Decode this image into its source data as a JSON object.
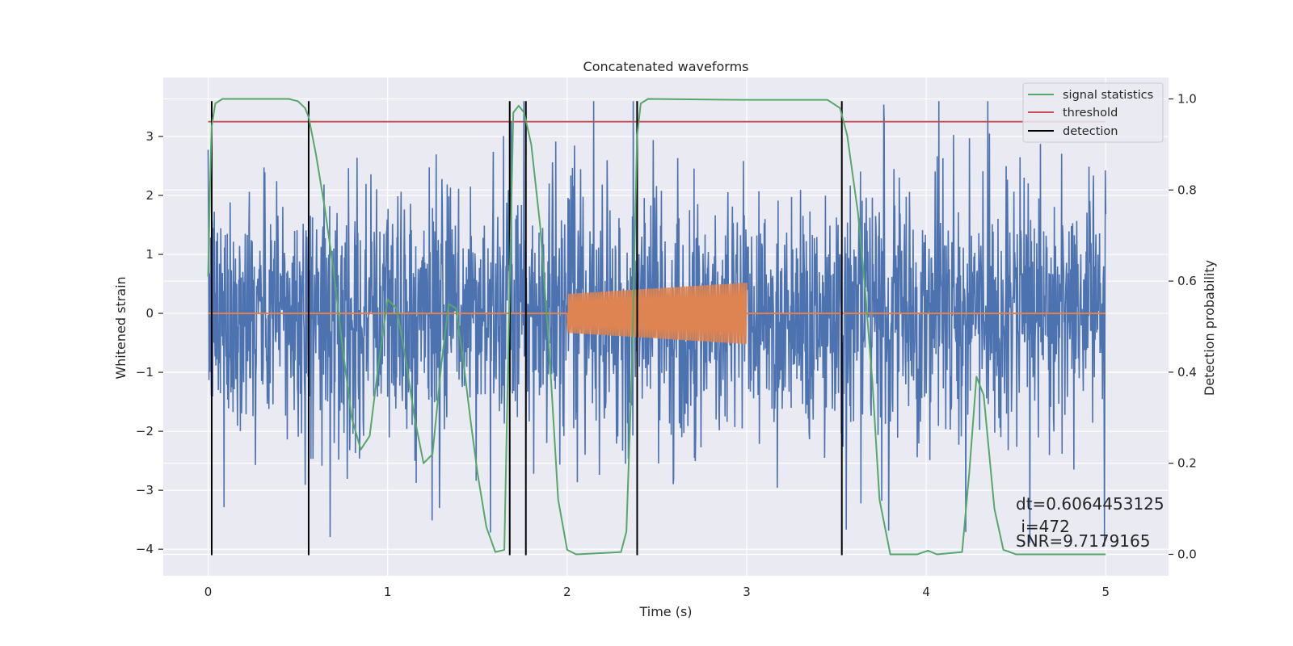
{
  "chart_data": {
    "type": "line",
    "title": "Concatenated waveforms",
    "xlabel": "Time (s)",
    "ylabel": "Whitened strain",
    "y2label": "Detection probability",
    "xlim": [
      -0.25,
      5.35
    ],
    "ylim": [
      -4.45,
      4.0
    ],
    "y2lim": [
      -0.047,
      1.047
    ],
    "xticks": [
      0,
      1,
      2,
      3,
      4,
      5
    ],
    "yticks": [
      -4,
      -3,
      -2,
      -1,
      0,
      1,
      2,
      3
    ],
    "y2ticks": [
      0.0,
      0.2,
      0.4,
      0.6,
      0.8,
      1.0
    ],
    "xtick_labels": [
      "0",
      "1",
      "2",
      "3",
      "4",
      "5"
    ],
    "ytick_labels": [
      "−4",
      "−3",
      "−2",
      "−1",
      "0",
      "1",
      "2",
      "3"
    ],
    "y2tick_labels": [
      "0.0",
      "0.2",
      "0.4",
      "0.6",
      "0.8",
      "1.0"
    ],
    "grid": true,
    "legend_position": "top-right",
    "colors": {
      "background": "#EAEAF2",
      "grid": "#FFFFFF",
      "noise": "#4C72B0",
      "injection": "#DD8452",
      "statistic": "#55A868",
      "threshold": "#C44E52",
      "detection": "#000000"
    },
    "series": [
      {
        "name": "",
        "role": "whitened strain noise",
        "axis": "left",
        "t_range": [
          0,
          5
        ],
        "amplitude_range": [
          -4.05,
          3.6
        ]
      },
      {
        "name": "",
        "role": "injected chirp",
        "axis": "left",
        "t_range": [
          2.0,
          3.0
        ],
        "amplitude_start": 0.33,
        "amplitude_end": 0.52
      },
      {
        "name": "signal statistics",
        "axis": "right",
        "points": [
          [
            0.0,
            0.61
          ],
          [
            0.01,
            0.8
          ],
          [
            0.02,
            0.94
          ],
          [
            0.04,
            0.99
          ],
          [
            0.08,
            1.0
          ],
          [
            0.45,
            1.0
          ],
          [
            0.5,
            0.995
          ],
          [
            0.54,
            0.98
          ],
          [
            0.56,
            0.96
          ],
          [
            0.6,
            0.88
          ],
          [
            0.65,
            0.76
          ],
          [
            0.7,
            0.62
          ],
          [
            0.75,
            0.45
          ],
          [
            0.8,
            0.3
          ],
          [
            0.85,
            0.23
          ],
          [
            0.9,
            0.26
          ],
          [
            0.95,
            0.42
          ],
          [
            1.0,
            0.56
          ],
          [
            1.05,
            0.54
          ],
          [
            1.1,
            0.43
          ],
          [
            1.15,
            0.3
          ],
          [
            1.2,
            0.2
          ],
          [
            1.25,
            0.22
          ],
          [
            1.3,
            0.42
          ],
          [
            1.34,
            0.55
          ],
          [
            1.38,
            0.54
          ],
          [
            1.42,
            0.43
          ],
          [
            1.46,
            0.3
          ],
          [
            1.5,
            0.18
          ],
          [
            1.55,
            0.06
          ],
          [
            1.6,
            0.005
          ],
          [
            1.65,
            0.01
          ],
          [
            1.68,
            0.6
          ],
          [
            1.7,
            0.97
          ],
          [
            1.73,
            0.985
          ],
          [
            1.76,
            0.97
          ],
          [
            1.8,
            0.9
          ],
          [
            1.85,
            0.72
          ],
          [
            1.9,
            0.45
          ],
          [
            1.95,
            0.12
          ],
          [
            2.0,
            0.01
          ],
          [
            2.05,
            0.0
          ],
          [
            2.3,
            0.005
          ],
          [
            2.33,
            0.05
          ],
          [
            2.36,
            0.4
          ],
          [
            2.39,
            0.92
          ],
          [
            2.41,
            0.99
          ],
          [
            2.45,
            1.0
          ],
          [
            3.0,
            0.998
          ],
          [
            3.45,
            0.998
          ],
          [
            3.52,
            0.98
          ],
          [
            3.56,
            0.92
          ],
          [
            3.62,
            0.75
          ],
          [
            3.66,
            0.58
          ],
          [
            3.7,
            0.38
          ],
          [
            3.74,
            0.12
          ],
          [
            3.8,
            0.0
          ],
          [
            3.95,
            0.0
          ],
          [
            4.01,
            0.008
          ],
          [
            4.06,
            0.0
          ],
          [
            4.2,
            0.005
          ],
          [
            4.24,
            0.18
          ],
          [
            4.28,
            0.39
          ],
          [
            4.32,
            0.35
          ],
          [
            4.38,
            0.1
          ],
          [
            4.43,
            0.01
          ],
          [
            4.5,
            0.0
          ],
          [
            5.0,
            0.0
          ]
        ]
      },
      {
        "name": "threshold",
        "axis": "right",
        "y": 0.95,
        "x_range": [
          0,
          5
        ]
      },
      {
        "name": "detection",
        "axis": "left",
        "x": [
          0.02,
          0.56,
          1.68,
          1.77,
          2.39,
          3.53
        ],
        "y_range": [
          -4.1,
          3.6
        ]
      }
    ],
    "annotations": [
      "dt=0.6064453125",
      " i=472",
      "SNR=9.7179165"
    ]
  }
}
